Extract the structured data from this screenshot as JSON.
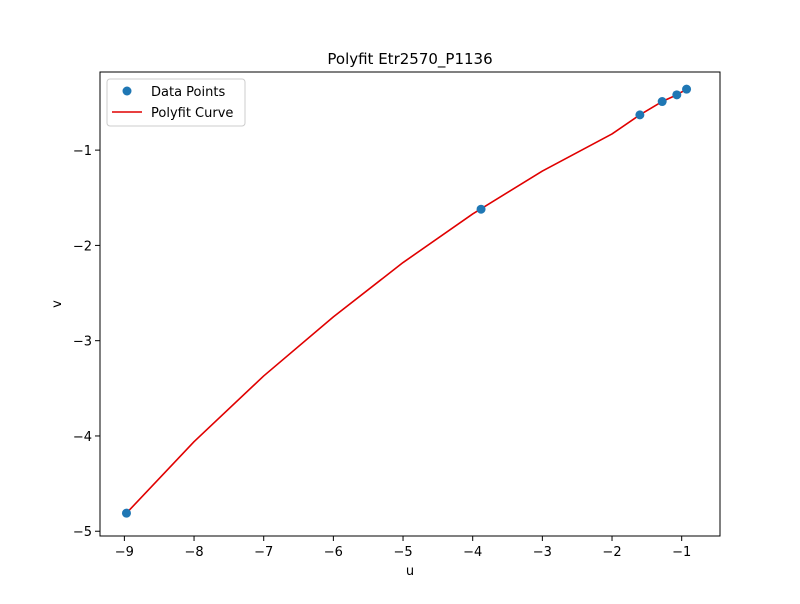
{
  "chart_data": {
    "type": "scatter",
    "title": "Polyfit Etr2570_P1136",
    "xlabel": "u",
    "ylabel": "v",
    "xlim": [
      -9.35,
      -0.45
    ],
    "ylim": [
      -5.05,
      -0.18
    ],
    "x_ticks": [
      -9,
      -8,
      -7,
      -6,
      -5,
      -4,
      -3,
      -2,
      -1
    ],
    "x_tick_labels": [
      "−9",
      "−8",
      "−7",
      "−6",
      "−5",
      "−4",
      "−3",
      "−2",
      "−1"
    ],
    "y_ticks": [
      -5,
      -4,
      -3,
      -2,
      -1
    ],
    "y_tick_labels": [
      "−5",
      "−4",
      "−3",
      "−2",
      "−1"
    ],
    "grid": false,
    "legend_position": "top-left",
    "series": [
      {
        "name": "Data Points",
        "kind": "scatter",
        "color": "#1f77b4",
        "x": [
          -8.97,
          -3.88,
          -1.6,
          -1.28,
          -1.07,
          -0.93
        ],
        "y": [
          -4.81,
          -1.62,
          -0.63,
          -0.49,
          -0.42,
          -0.36
        ]
      },
      {
        "name": "Polyfit Curve",
        "kind": "line",
        "color": "#e00000",
        "x": [
          -8.97,
          -8.0,
          -7.0,
          -6.0,
          -5.0,
          -4.0,
          -3.0,
          -2.0,
          -1.6,
          -1.28,
          -1.07,
          -0.93
        ],
        "y": [
          -4.81,
          -4.06,
          -3.37,
          -2.75,
          -2.18,
          -1.67,
          -1.22,
          -0.83,
          -0.63,
          -0.49,
          -0.42,
          -0.36
        ]
      }
    ]
  }
}
